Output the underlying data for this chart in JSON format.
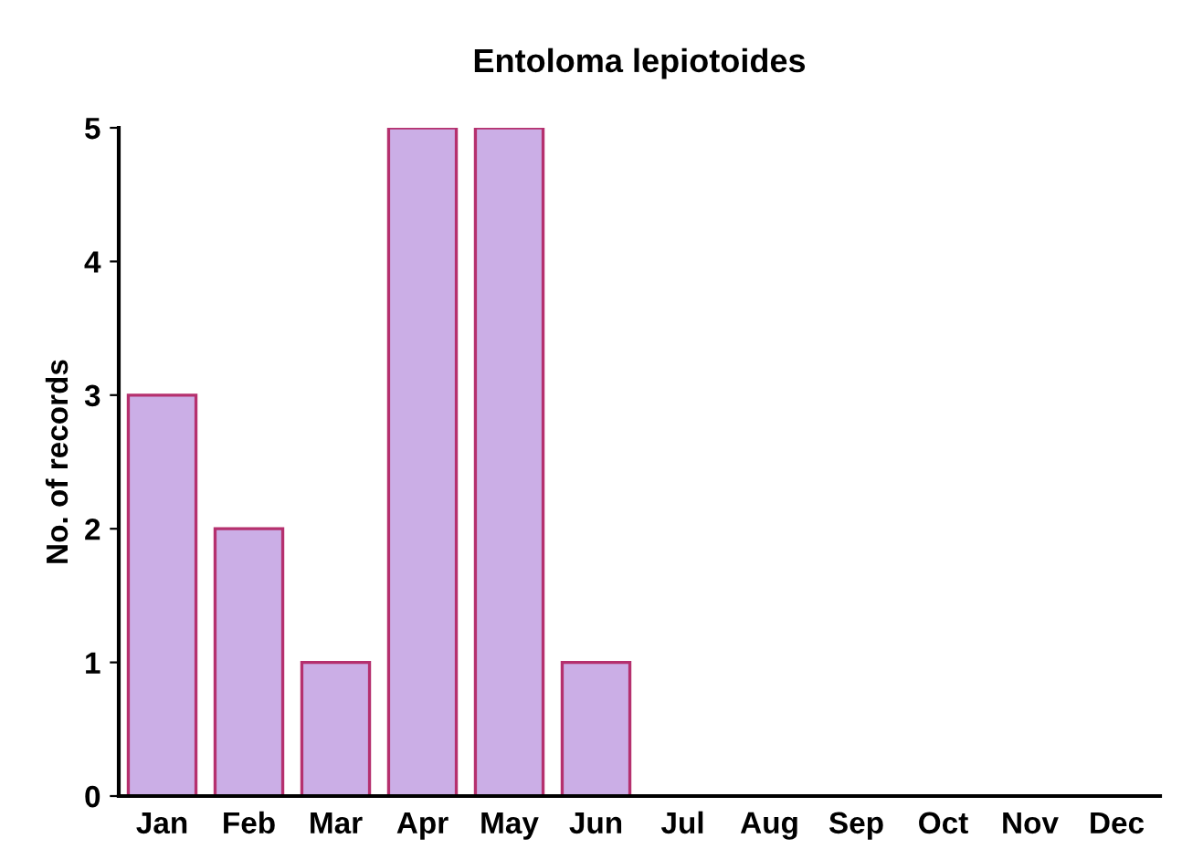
{
  "chart_data": {
    "type": "bar",
    "title": "Entoloma lepiotoides",
    "ylabel": "No. of records",
    "categories": [
      "Jan",
      "Feb",
      "Mar",
      "Apr",
      "May",
      "Jun",
      "Jul",
      "Aug",
      "Sep",
      "Oct",
      "Nov",
      "Dec"
    ],
    "values": [
      3,
      2,
      1,
      5,
      5,
      1,
      0,
      0,
      0,
      0,
      0,
      0
    ],
    "color": "#cbaee6",
    "ylim": [
      0,
      5
    ],
    "yticks": [
      0,
      1,
      2,
      3,
      4,
      5
    ],
    "grid": false,
    "legend": false
  }
}
